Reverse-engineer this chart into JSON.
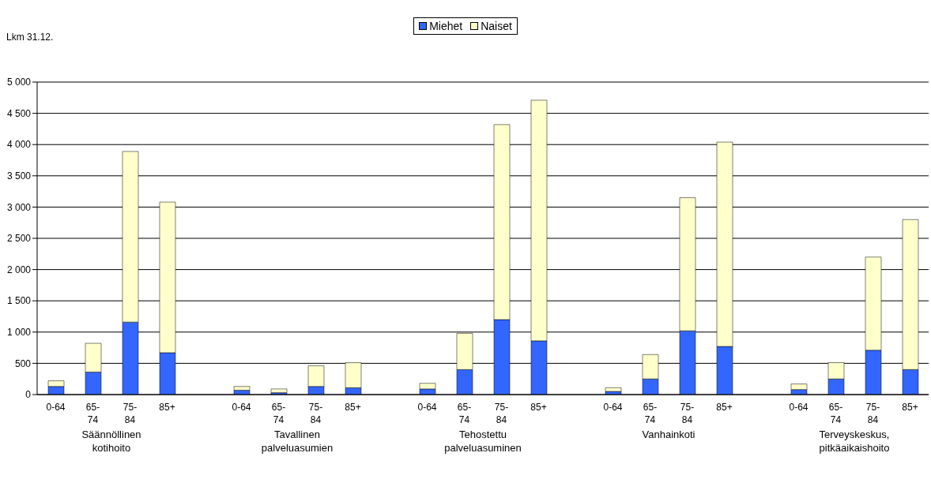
{
  "chart_data": {
    "type": "bar",
    "stacked": true,
    "ylabel": "Lkm 31.12.",
    "categories": [
      "0-64",
      "65-74",
      "75-84",
      "85+",
      null,
      "0-64",
      "65-74",
      "75-84",
      "85+",
      null,
      "0-64",
      "65-74",
      "75-84",
      "85+",
      null,
      "0-64",
      "65-74",
      "75-84",
      "85+",
      null,
      "0-64",
      "65-74",
      "75-84",
      "85+"
    ],
    "series": [
      {
        "name": "Miehet",
        "color": "#3366ff",
        "values": [
          130,
          360,
          1160,
          670,
          null,
          70,
          30,
          130,
          110,
          null,
          90,
          400,
          1200,
          860,
          null,
          50,
          250,
          1020,
          770,
          null,
          80,
          250,
          710,
          400
        ]
      },
      {
        "name": "Naiset",
        "color": "#ffffcc",
        "values": [
          90,
          460,
          2730,
          2410,
          null,
          60,
          60,
          330,
          400,
          null,
          90,
          580,
          3120,
          3850,
          null,
          60,
          390,
          2130,
          3270,
          null,
          90,
          260,
          1490,
          2400
        ]
      }
    ],
    "ylim": [
      0,
      5000
    ],
    "yticks": [
      0,
      500,
      {
        "value": 1000,
        "label": "1 000"
      },
      {
        "value": 1500,
        "label": "1 500"
      },
      {
        "value": 2000,
        "label": "2 000"
      },
      {
        "value": 2500,
        "label": "2 500"
      },
      {
        "value": 3000,
        "label": "3 000"
      },
      {
        "value": 3500,
        "label": "3 500"
      },
      {
        "value": 4000,
        "label": "4 000"
      },
      {
        "value": 4500,
        "label": "4 500"
      },
      {
        "value": 5000,
        "label": "5 000"
      }
    ],
    "grid": "y",
    "legend": "top",
    "annotations": [
      "Säännöllinen kotihoito",
      "Tavallinen palveluasumien",
      "Tehostettu palveluasuminen",
      "Vanhainkoti",
      "Terveyskeskus, pitkäaikaishoito"
    ]
  }
}
